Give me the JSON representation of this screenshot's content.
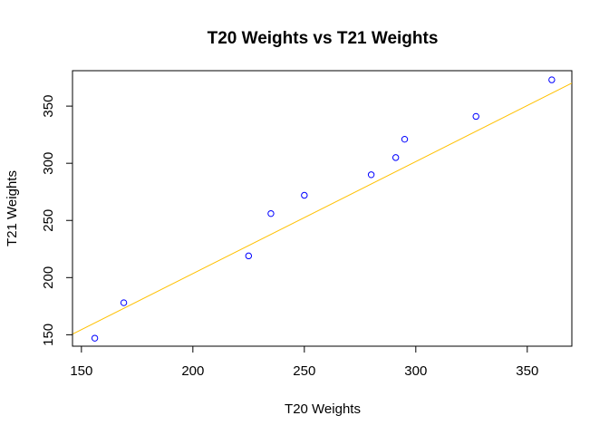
{
  "chart_data": {
    "type": "scatter",
    "title": "T20 Weights vs T21 Weights",
    "xlabel": "T20 Weights",
    "ylabel": "T21 Weights",
    "xlim": [
      146,
      370
    ],
    "ylim": [
      140,
      381
    ],
    "x_ticks": [
      150,
      200,
      250,
      300,
      350
    ],
    "y_ticks": [
      150,
      200,
      250,
      300,
      350
    ],
    "grid": false,
    "points": [
      {
        "x": 156,
        "y": 147
      },
      {
        "x": 169,
        "y": 178
      },
      {
        "x": 225,
        "y": 219
      },
      {
        "x": 235,
        "y": 256
      },
      {
        "x": 250,
        "y": 272
      },
      {
        "x": 280,
        "y": 290
      },
      {
        "x": 291,
        "y": 305
      },
      {
        "x": 295,
        "y": 321
      },
      {
        "x": 327,
        "y": 341
      },
      {
        "x": 361,
        "y": 373
      }
    ],
    "fit_line": {
      "intercept": 7.5,
      "slope": 0.98
    },
    "colors": {
      "points": "#0000ff",
      "fit_line": "#ffc000",
      "axes": "#000000"
    }
  }
}
